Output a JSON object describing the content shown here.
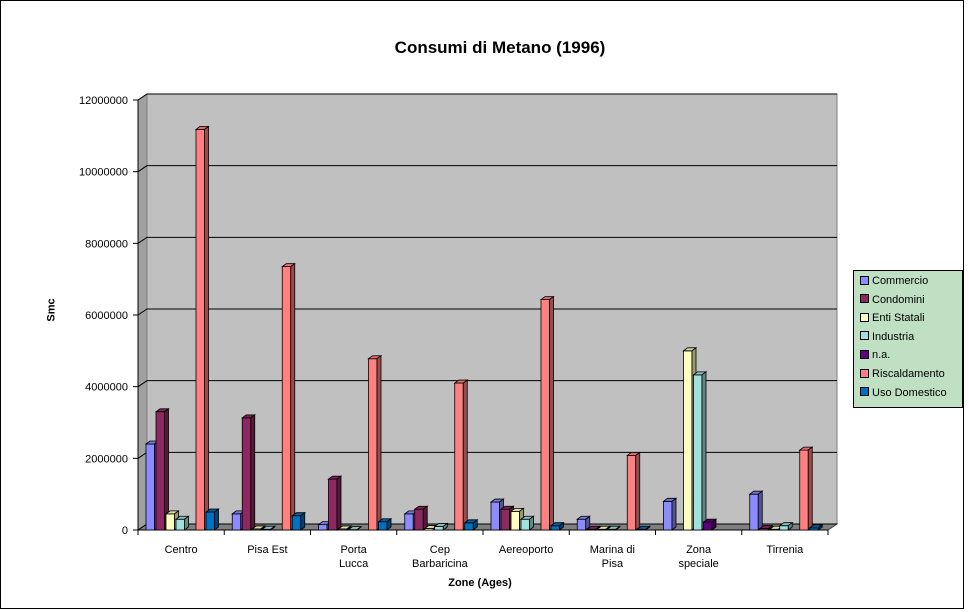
{
  "chart_data": {
    "type": "bar",
    "title": "Consumi di Metano (1996)",
    "xlabel": "Zone (Ages)",
    "ylabel": "Smc",
    "ylim": [
      0,
      12000000
    ],
    "yticks": [
      "0",
      "2000000",
      "4000000",
      "6000000",
      "8000000",
      "10000000",
      "12000000"
    ],
    "categories": [
      [
        "Centro"
      ],
      [
        "Pisa Est"
      ],
      [
        "Porta",
        "Lucca"
      ],
      [
        "Cep",
        "Barbaricina"
      ],
      [
        "Aereoporto"
      ],
      [
        "Marina di",
        "Pisa"
      ],
      [
        "Zona",
        "speciale"
      ],
      [
        "Tirrenia"
      ]
    ],
    "series": [
      {
        "name": "Commercio",
        "color": "#8c8cff",
        "values": [
          2400000,
          450000,
          150000,
          450000,
          780000,
          300000,
          800000,
          1000000
        ]
      },
      {
        "name": "Condomini",
        "color": "#8c2960",
        "values": [
          3300000,
          3130000,
          1420000,
          580000,
          580000,
          20000,
          0,
          40000
        ]
      },
      {
        "name": "Enti Statali",
        "color": "#ffffc0",
        "values": [
          450000,
          30000,
          30000,
          40000,
          520000,
          20000,
          5000000,
          20000
        ]
      },
      {
        "name": "Industria",
        "color": "#a0e0e0",
        "values": [
          300000,
          20000,
          10000,
          100000,
          300000,
          20000,
          4330000,
          120000
        ]
      },
      {
        "name": "n.a.",
        "color": "#600080",
        "values": [
          0,
          0,
          0,
          0,
          0,
          0,
          220000,
          0
        ]
      },
      {
        "name": "Riscaldamento",
        "color": "#ff8080",
        "values": [
          11180000,
          7350000,
          4780000,
          4100000,
          6430000,
          2080000,
          0,
          2230000
        ]
      },
      {
        "name": "Uso Domestico",
        "color": "#0070c0",
        "values": [
          500000,
          400000,
          230000,
          200000,
          120000,
          20000,
          0,
          60000
        ]
      }
    ],
    "grid": true,
    "plot_background": "#c0c0c0",
    "legend_background": "#c0e0c4",
    "legend_position": "right"
  }
}
